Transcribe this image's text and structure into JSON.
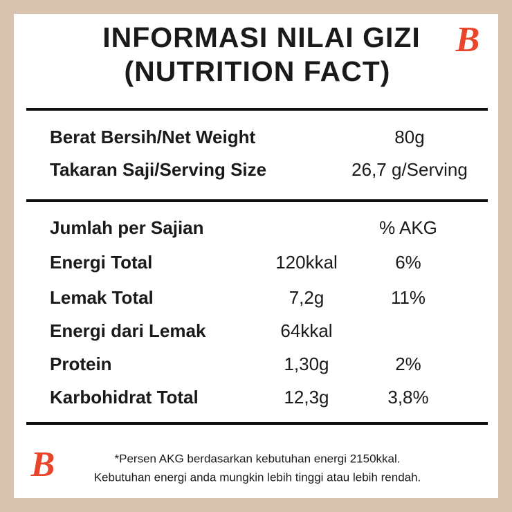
{
  "header": {
    "title_line1": "INFORMASI NILAI GIZI",
    "title_line2": "(NUTRITION FACT)"
  },
  "watermark": "B",
  "summary": [
    {
      "label": "Berat Bersih/Net Weight",
      "value": "80g"
    },
    {
      "label": "Takaran Saji/Serving Size",
      "value": "26,7 g/Serving"
    }
  ],
  "table": {
    "header": {
      "label": "Jumlah per Sajian",
      "akg": "% AKG"
    },
    "rows": [
      {
        "label": "Energi Total",
        "amount": "120kkal",
        "akg": "6%"
      },
      {
        "label": "Lemak Total",
        "amount": "7,2g",
        "akg": "11%"
      },
      {
        "label": "Energi dari Lemak",
        "amount": "64kkal"
      },
      {
        "label": "Protein",
        "amount": "1,30g",
        "akg": "2%"
      },
      {
        "label": "Karbohidrat Total",
        "amount": "12,3g",
        "akg": "3,8%"
      }
    ]
  },
  "footnote": {
    "line1": "*Persen AKG berdasarkan kebutuhan energi 2150kkal.",
    "line2": "Kebutuhan energi anda mungkin lebih tinggi atau lebih rendah."
  }
}
